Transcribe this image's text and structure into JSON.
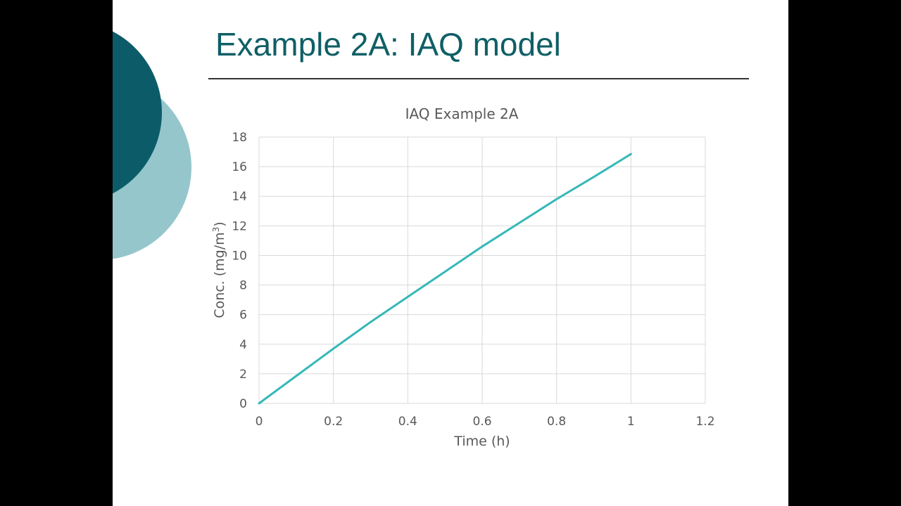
{
  "slide": {
    "title": "Example 2A: IAQ model"
  },
  "colors": {
    "title": "#0f5f66",
    "circle_dark": "#0b5c68",
    "circle_light": "#95c6cc",
    "series_line": "#36b8b9",
    "grid": "#d9d9d9",
    "text": "#595959"
  },
  "chart_data": {
    "type": "line",
    "title": "IAQ Example 2A",
    "xlabel": "Time (h)",
    "ylabel_main": "Conc. (mg/m",
    "ylabel_sup": "3",
    "ylabel_end": ")",
    "xlim": [
      0,
      1.2
    ],
    "ylim": [
      0,
      18
    ],
    "x_ticks": [
      0,
      0.2,
      0.4,
      0.6,
      0.8,
      1,
      1.2
    ],
    "x_tick_labels": [
      "0",
      "0.2",
      "0.4",
      "0.6",
      "0.8",
      "1",
      "1.2"
    ],
    "y_ticks": [
      0,
      2,
      4,
      6,
      8,
      10,
      12,
      14,
      16,
      18
    ],
    "y_tick_labels": [
      "0",
      "2",
      "4",
      "6",
      "8",
      "10",
      "12",
      "14",
      "16",
      "18"
    ],
    "grid": true,
    "legend": "none",
    "series": [
      {
        "x": [
          0,
          0.1,
          0.2,
          0.3,
          0.4,
          0.5,
          0.6,
          0.7,
          0.8,
          0.9,
          1.0
        ],
        "y": [
          0,
          1.85,
          3.7,
          5.5,
          7.2,
          8.9,
          10.6,
          12.2,
          13.8,
          15.3,
          16.85
        ]
      }
    ]
  }
}
